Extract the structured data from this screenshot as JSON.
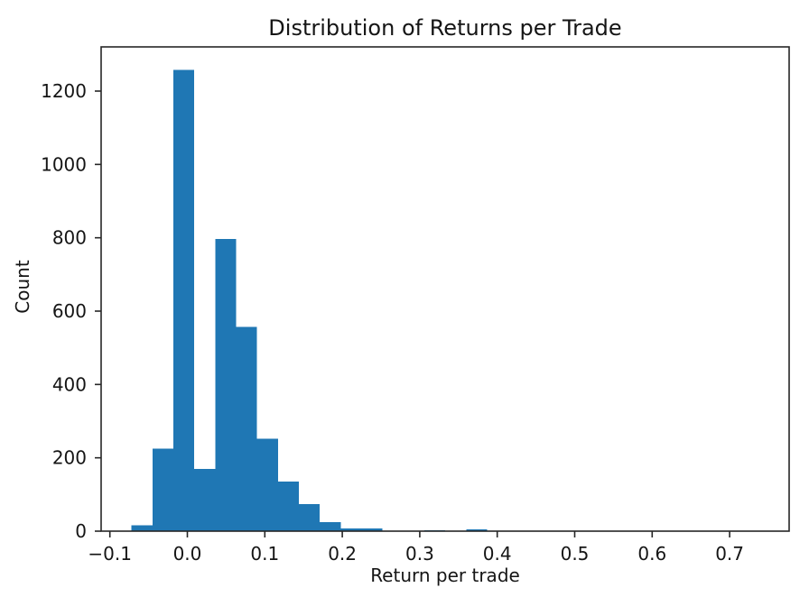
{
  "chart_data": {
    "type": "bar",
    "subtype": "histogram",
    "title": "Distribution of Returns per Trade",
    "xlabel": "Return per trade",
    "ylabel": "Count",
    "bin_start": -0.072,
    "bin_width": 0.027,
    "counts": [
      16,
      225,
      1258,
      170,
      797,
      557,
      252,
      135,
      74,
      25,
      8,
      8,
      0,
      0,
      3,
      0,
      5,
      0,
      0,
      0,
      0,
      0,
      0,
      0,
      0,
      0,
      0,
      0,
      0,
      0
    ],
    "x_ticks": [
      -0.1,
      0.0,
      0.1,
      0.2,
      0.3,
      0.4,
      0.5,
      0.6,
      0.7
    ],
    "x_tick_labels": [
      "−0.1",
      "0.0",
      "0.1",
      "0.2",
      "0.3",
      "0.4",
      "0.5",
      "0.6",
      "0.7"
    ],
    "y_ticks": [
      0,
      200,
      400,
      600,
      800,
      1000,
      1200
    ],
    "y_tick_labels": [
      "0",
      "200",
      "400",
      "600",
      "800",
      "1000",
      "1200"
    ],
    "xlim": [
      -0.1113,
      0.7768
    ],
    "ylim": [
      0,
      1320.5
    ],
    "grid": false,
    "legend": null,
    "bar_color": "#1f77b4",
    "spine_color": "#262626",
    "text_color": "#151515"
  }
}
